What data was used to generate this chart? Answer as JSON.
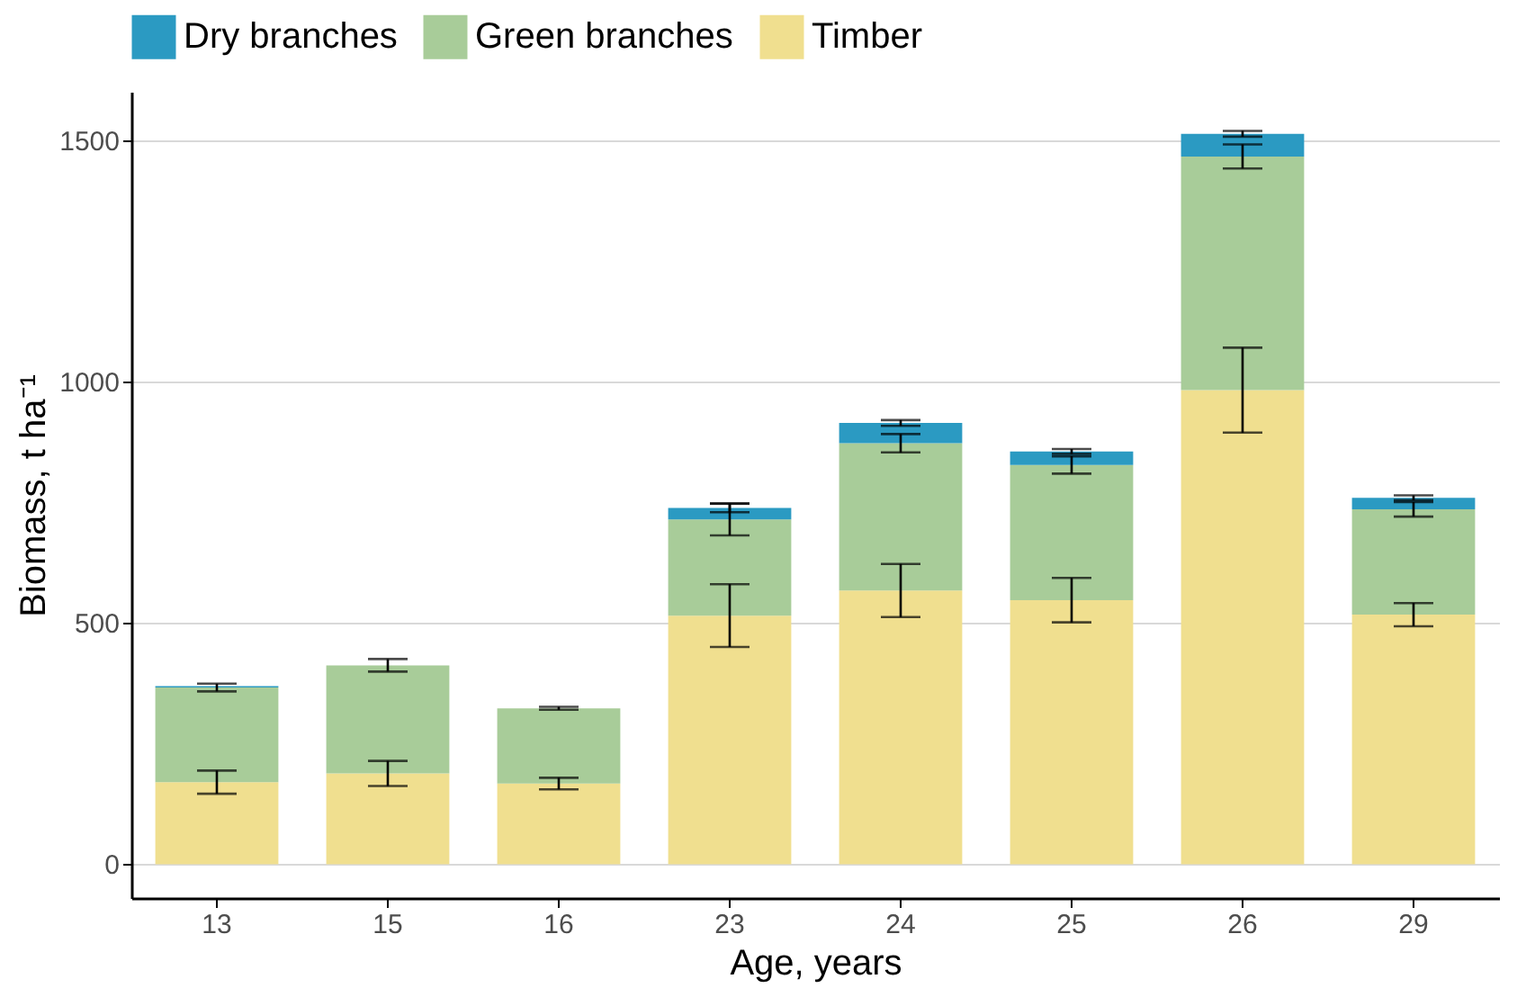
{
  "chart_data": {
    "type": "bar",
    "stacked": true,
    "xlabel": "Age, years",
    "ylabel": "Biomass, t ha⁻¹",
    "categories": [
      "13",
      "15",
      "16",
      "23",
      "24",
      "25",
      "26",
      "29"
    ],
    "series": [
      {
        "name": "Timber",
        "color": "#f0df8f",
        "values": [
          170,
          188,
          167,
          515,
          567,
          547,
          982,
          517
        ],
        "errors": [
          24,
          26,
          12,
          65,
          55,
          46,
          88,
          24
        ]
      },
      {
        "name": "Green branches",
        "color": "#a8cc99",
        "values": [
          196,
          224,
          156,
          199,
          305,
          280,
          484,
          218
        ],
        "errors": [
          8,
          13,
          3,
          33,
          19,
          18,
          25,
          15
        ]
      },
      {
        "name": "Dry branches",
        "color": "#2b9ac2",
        "values": [
          3,
          null,
          null,
          24,
          42,
          28,
          47,
          24
        ],
        "errors": [
          null,
          null,
          null,
          9,
          6,
          5,
          6,
          5
        ]
      }
    ],
    "ylim": [
      -70,
      1600
    ],
    "yticks": [
      0,
      500,
      1000,
      1500
    ],
    "grid": "y",
    "legend": "top"
  }
}
